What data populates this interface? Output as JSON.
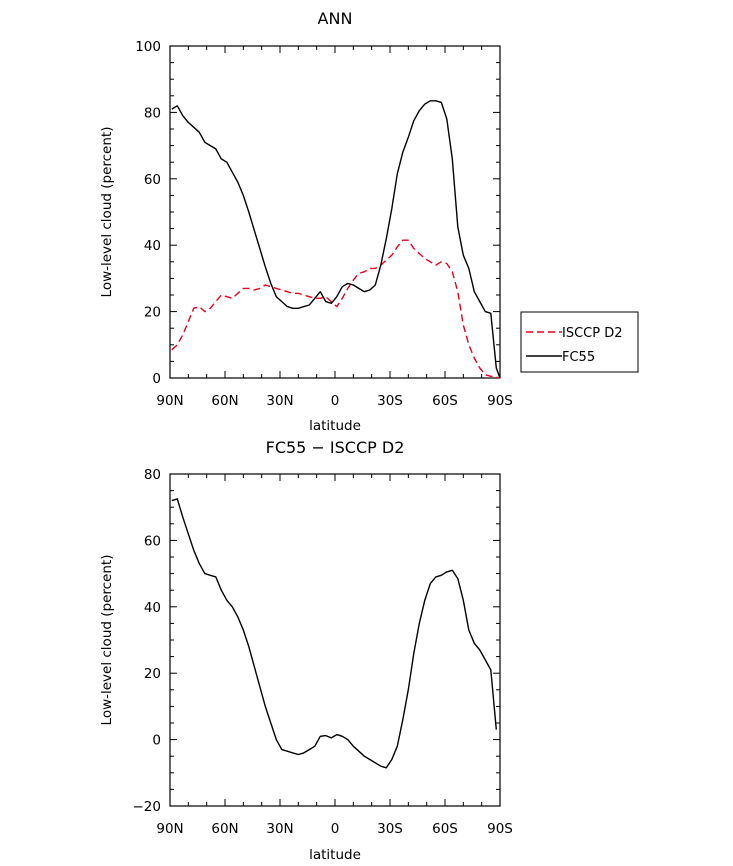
{
  "chart_data": [
    {
      "type": "line",
      "title": "ANN",
      "xlabel": "latitude",
      "ylabel": "Low-level cloud (percent)",
      "xlim": [
        90,
        -90
      ],
      "ylim": [
        0,
        100
      ],
      "xtick_values": [
        90,
        60,
        30,
        0,
        -30,
        -60,
        -90
      ],
      "xtick_labels": [
        "90N",
        "60N",
        "30N",
        "0",
        "30S",
        "60S",
        "90S"
      ],
      "ytick_values": [
        0,
        20,
        40,
        60,
        80,
        100
      ],
      "ytick_labels": [
        "0",
        "20",
        "40",
        "60",
        "80",
        "100"
      ],
      "legend_position": "right",
      "series": [
        {
          "name": "ISCCP D2",
          "color": "#e8001c",
          "dash": "dashed",
          "x": [
            89,
            86,
            83,
            80,
            77,
            74,
            71,
            68,
            65,
            62,
            59,
            56,
            53,
            50,
            47,
            44,
            41,
            38,
            35,
            32,
            29,
            26,
            23,
            20,
            17,
            14,
            11,
            8,
            5,
            2,
            -1,
            -4,
            -7,
            -10,
            -13,
            -16,
            -19,
            -22,
            -25,
            -28,
            -31,
            -34,
            -37,
            -40,
            -43,
            -46,
            -49,
            -52,
            -55,
            -58,
            -61,
            -64,
            -67,
            -70,
            -73,
            -76,
            -79,
            -82,
            -85,
            -88,
            -90
          ],
          "y": [
            8.5,
            10,
            13,
            17,
            21,
            21.5,
            20,
            21,
            23,
            25,
            24.5,
            24,
            25.5,
            27,
            27,
            26.5,
            27,
            28,
            27.5,
            27,
            26.5,
            26,
            25.5,
            25.5,
            25,
            24.5,
            24,
            24,
            24.5,
            23,
            21.5,
            24,
            27,
            29.5,
            31.5,
            32,
            33,
            33,
            34,
            35.5,
            37,
            39.5,
            41.5,
            41.5,
            39,
            37.5,
            36,
            35,
            34,
            35,
            34.5,
            32,
            26,
            16,
            10,
            6,
            3,
            1,
            0.5,
            0.2,
            0
          ]
        },
        {
          "name": "FC55",
          "color": "#000000",
          "dash": "solid",
          "x": [
            89,
            86,
            83,
            80,
            77,
            74,
            71,
            68,
            65,
            62,
            59,
            56,
            53,
            50,
            47,
            44,
            41,
            38,
            35,
            32,
            29,
            26,
            23,
            20,
            17,
            14,
            11,
            8,
            5,
            2,
            -1,
            -4,
            -7,
            -10,
            -13,
            -16,
            -19,
            -22,
            -25,
            -28,
            -31,
            -34,
            -37,
            -40,
            -43,
            -46,
            -49,
            -52,
            -55,
            -58,
            -61,
            -64,
            -67,
            -70,
            -73,
            -76,
            -79,
            -82,
            -85,
            -88,
            -90
          ],
          "y": [
            81,
            82,
            79,
            77,
            75.5,
            74,
            71,
            70,
            69,
            66,
            65,
            62,
            59,
            55,
            50,
            44.5,
            39,
            33.5,
            28.5,
            24.5,
            23,
            21.5,
            21,
            21,
            21.5,
            22,
            24,
            26,
            23,
            22.5,
            24.5,
            27.5,
            28.5,
            28,
            27,
            26,
            26.5,
            28,
            34,
            42,
            51,
            61.5,
            68,
            72.5,
            77.5,
            80.5,
            82.5,
            83.5,
            83.5,
            83,
            78,
            66,
            45.5,
            37,
            33,
            26,
            23,
            20,
            19.5,
            3,
            0
          ]
        }
      ]
    },
    {
      "type": "line",
      "title": "FC55 − ISCCP D2",
      "xlabel": "latitude",
      "ylabel": "Low-level cloud (percent)",
      "xlim": [
        90,
        -90
      ],
      "ylim": [
        -20,
        80
      ],
      "xtick_values": [
        90,
        60,
        30,
        0,
        -30,
        -60,
        -90
      ],
      "xtick_labels": [
        "90N",
        "60N",
        "30N",
        "0",
        "30S",
        "60S",
        "90S"
      ],
      "ytick_values": [
        -20,
        0,
        20,
        40,
        60,
        80
      ],
      "ytick_labels": [
        "−20",
        "0",
        "20",
        "40",
        "60",
        "80"
      ],
      "series": [
        {
          "color": "#000000",
          "dash": "solid",
          "x": [
            89,
            86,
            83,
            80,
            77,
            74,
            71,
            68,
            65,
            62,
            59,
            56,
            53,
            50,
            47,
            44,
            41,
            38,
            35,
            32,
            29,
            26,
            23,
            20,
            17,
            14,
            11,
            8,
            5,
            2,
            -1,
            -4,
            -7,
            -10,
            -13,
            -16,
            -19,
            -22,
            -25,
            -28,
            -31,
            -34,
            -37,
            -40,
            -43,
            -46,
            -49,
            -52,
            -55,
            -58,
            -61,
            -64,
            -67,
            -70,
            -73,
            -76,
            -79,
            -82,
            -85,
            -88
          ],
          "y": [
            72,
            72.5,
            67,
            62,
            57,
            53,
            50,
            49.5,
            49,
            45,
            42,
            40,
            37,
            33,
            28,
            22,
            16,
            10,
            5,
            0,
            -3,
            -3.5,
            -4,
            -4.5,
            -4,
            -3,
            -2,
            1,
            1.2,
            0.5,
            1.5,
            1,
            0,
            -2,
            -3.5,
            -5,
            -6,
            -7,
            -8,
            -8.5,
            -6,
            -2,
            6,
            15,
            26,
            35,
            42,
            47,
            49,
            49.5,
            50.5,
            51,
            48.5,
            42,
            33,
            29,
            27,
            24,
            21,
            3
          ]
        }
      ]
    }
  ]
}
